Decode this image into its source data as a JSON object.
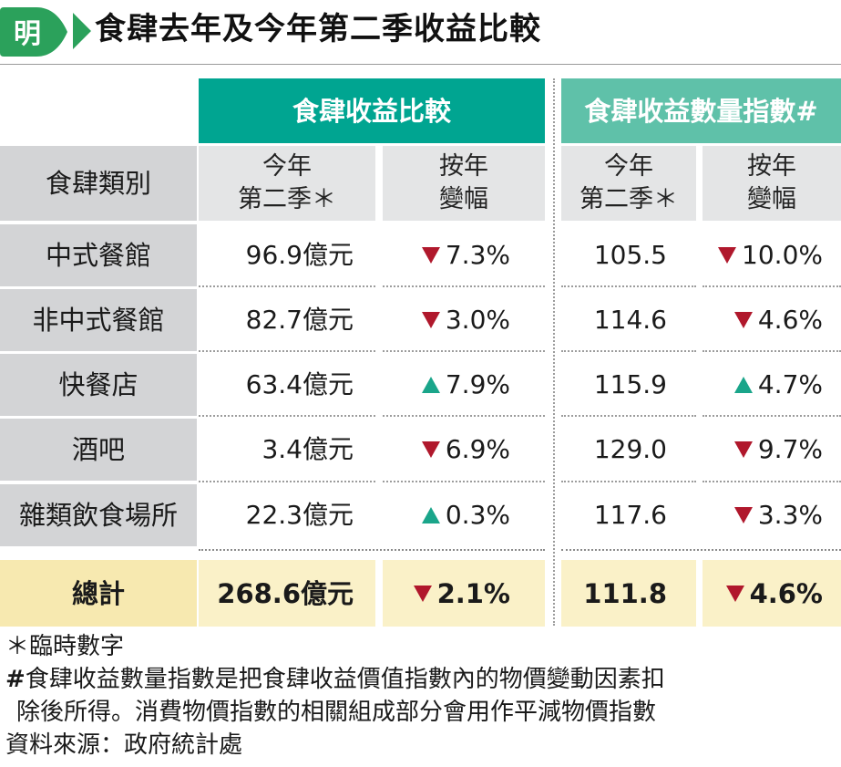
{
  "brand": {
    "logo_char": "明",
    "logo_color": "#2ba15b"
  },
  "title": "食肆去年及今年第二季收益比較",
  "headers": {
    "revenue_group": "食肆收益比較",
    "index_group": "食肆收益數量指數#",
    "category": "食肆類別",
    "current_line1": "今年",
    "current_line2": "第二季＊",
    "yoy_line1": "按年",
    "yoy_line2": "變幅"
  },
  "rows": [
    {
      "category": "中式餐館",
      "revenue": "96.9億元",
      "rev_dir": "down",
      "rev_change": "7.3%",
      "index": "105.5",
      "idx_dir": "down",
      "idx_change": "10.0%"
    },
    {
      "category": "非中式餐館",
      "revenue": "82.7億元",
      "rev_dir": "down",
      "rev_change": "3.0%",
      "index": "114.6",
      "idx_dir": "down",
      "idx_change": "4.6%"
    },
    {
      "category": "快餐店",
      "revenue": "63.4億元",
      "rev_dir": "up",
      "rev_change": "7.9%",
      "index": "115.9",
      "idx_dir": "up",
      "idx_change": "4.7%"
    },
    {
      "category": "酒吧",
      "revenue": "3.4億元",
      "rev_dir": "down",
      "rev_change": "6.9%",
      "index": "129.0",
      "idx_dir": "down",
      "idx_change": "9.7%"
    },
    {
      "category": "雜類飲食場所",
      "revenue": "22.3億元",
      "rev_dir": "up",
      "rev_change": "0.3%",
      "index": "117.6",
      "idx_dir": "down",
      "idx_change": "3.3%"
    }
  ],
  "total": {
    "category": "總計",
    "revenue": "268.6億元",
    "rev_dir": "down",
    "rev_change": "2.1%",
    "index": "111.8",
    "idx_dir": "down",
    "idx_change": "4.6%"
  },
  "notes": {
    "provisional": "＊臨時數字",
    "hash_mark": "#",
    "index_note_line1": "食肆收益數量指數是把食肆收益價值指數內的物價變動因素扣",
    "index_note_line2": "除後所得。消費物價指數的相關組成部分會用作平減物價指數",
    "source": "資料來源：政府統計處"
  },
  "colors": {
    "green": "#00a591",
    "mint": "#5fc1a9",
    "down": "#b0182c",
    "up": "#1aa58a",
    "total_bg": "#faf1c8"
  }
}
